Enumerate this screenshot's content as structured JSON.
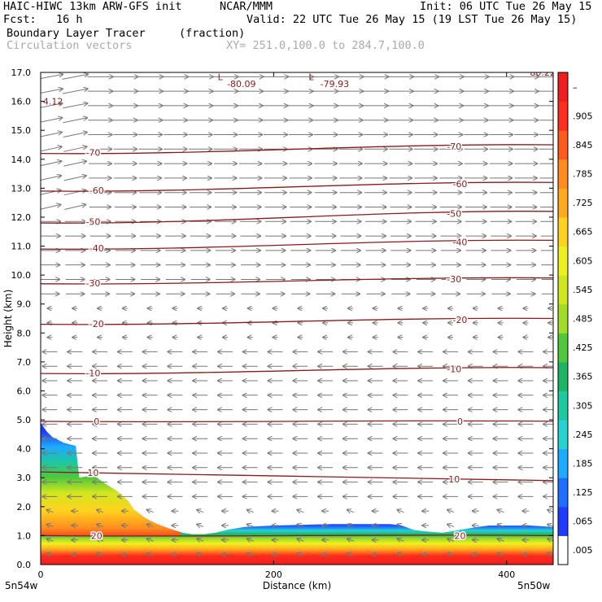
{
  "header": {
    "model": "HAIC-HIWC 13km ARW-GFS init",
    "org": "NCAR/MMM",
    "init": "Init: 06 UTC Tue 26 May 15",
    "fcst": "Fcst:   16 h",
    "valid": "Valid: 22 UTC Tue 26 May 15 (19 LST Tue 26 May 15)",
    "field_name": "Boundary Layer Tracer",
    "field_units": "(fraction)",
    "vector_label": "Circulation vectors",
    "xsec_endpoints": "XY= 251.0,100.0 to 284.7,100.0"
  },
  "chart_data": {
    "type": "heatmap",
    "xlabel": "Distance (km)",
    "ylabel": "Height (km)",
    "xlim": [
      0,
      440
    ],
    "ylim": [
      0,
      17
    ],
    "x_ticks": [
      "0",
      "200",
      "400"
    ],
    "y_ticks": [
      "0.0",
      "1.0",
      "2.0",
      "3.0",
      "4.0",
      "5.0",
      "6.0",
      "7.0",
      "8.0",
      "9.0",
      "10.0",
      "11.0",
      "12.0",
      "13.0",
      "14.0",
      "15.0",
      "16.0",
      "17.0"
    ],
    "endpoint_labels": {
      "left": "5n54w",
      "right": "5n50w"
    },
    "colorbar": {
      "labels": [
        ".005",
        ".065",
        ".125",
        ".185",
        ".245",
        ".305",
        ".365",
        ".425",
        ".485",
        ".545",
        ".605",
        ".665",
        ".725",
        ".785",
        ".845",
        ".905",
        "–"
      ],
      "colors": [
        "#ffffff",
        "#1e3cff",
        "#1e6eff",
        "#1eaaff",
        "#28d2d2",
        "#1ec8a0",
        "#1eb464",
        "#50c83c",
        "#a0dc28",
        "#d2e61e",
        "#f0f01e",
        "#ffd21e",
        "#ffaa1e",
        "#ff8c1e",
        "#ff5a1e",
        "#ff2d1e",
        "#f01e1e"
      ]
    },
    "tracer_top_km": [
      [
        0,
        4.9
      ],
      [
        5,
        4.6
      ],
      [
        10,
        4.4
      ],
      [
        20,
        4.2
      ],
      [
        30,
        4.1
      ],
      [
        33,
        3.0
      ],
      [
        40,
        3.05
      ],
      [
        45,
        3.1
      ],
      [
        55,
        2.8
      ],
      [
        65,
        2.55
      ],
      [
        75,
        2.2
      ],
      [
        80,
        1.9
      ],
      [
        90,
        1.6
      ],
      [
        100,
        1.4
      ],
      [
        110,
        1.25
      ],
      [
        118,
        1.15
      ],
      [
        122,
        1.1
      ],
      [
        130,
        1.05
      ],
      [
        140,
        1.05
      ],
      [
        150,
        1.1
      ],
      [
        160,
        1.2
      ],
      [
        175,
        1.3
      ],
      [
        200,
        1.35
      ],
      [
        250,
        1.4
      ],
      [
        300,
        1.4
      ],
      [
        310,
        1.35
      ],
      [
        320,
        1.2
      ],
      [
        330,
        1.15
      ],
      [
        345,
        1.1
      ],
      [
        360,
        1.2
      ],
      [
        375,
        1.3
      ],
      [
        385,
        1.35
      ],
      [
        400,
        1.35
      ],
      [
        420,
        1.35
      ],
      [
        440,
        1.3
      ]
    ],
    "temperature_contours": {
      "units": "C",
      "levels": [
        {
          "value": 20,
          "label": "20",
          "y_left": 1.0,
          "y_right": 1.0
        },
        {
          "value": 10,
          "label": "10",
          "y_left": 3.2,
          "y_right": 2.9
        },
        {
          "value": 0,
          "label": "0",
          "y_left": 4.95,
          "y_right": 4.95
        },
        {
          "value": -10,
          "label": "-10",
          "y_left": 6.6,
          "y_right": 6.8
        },
        {
          "value": -20,
          "label": "-20",
          "y_left": 8.3,
          "y_right": 8.5
        },
        {
          "value": -30,
          "label": "-30",
          "y_left": 9.7,
          "y_right": 9.9
        },
        {
          "value": -40,
          "label": "-40",
          "y_left": 10.9,
          "y_right": 11.2
        },
        {
          "value": -50,
          "label": "-50",
          "y_left": 11.8,
          "y_right": 12.2
        },
        {
          "value": -60,
          "label": "-60",
          "y_left": 12.9,
          "y_right": 13.2
        },
        {
          "value": -70,
          "label": "-70",
          "y_left": 14.2,
          "y_right": 14.5
        }
      ],
      "min_labels": [
        {
          "label": "-80.09",
          "x": 160,
          "y": 16.6
        },
        {
          "label": "-79.93",
          "x": 240,
          "y": 16.6
        },
        {
          "label": "4.12",
          "x": 2,
          "y": 16.0
        },
        {
          "label": "80.22",
          "x": 420,
          "y": 17.0
        }
      ],
      "low_markers": [
        {
          "label": "L",
          "x": 152,
          "y": 16.85
        },
        {
          "label": "L",
          "x": 230,
          "y": 16.85
        }
      ]
    }
  }
}
